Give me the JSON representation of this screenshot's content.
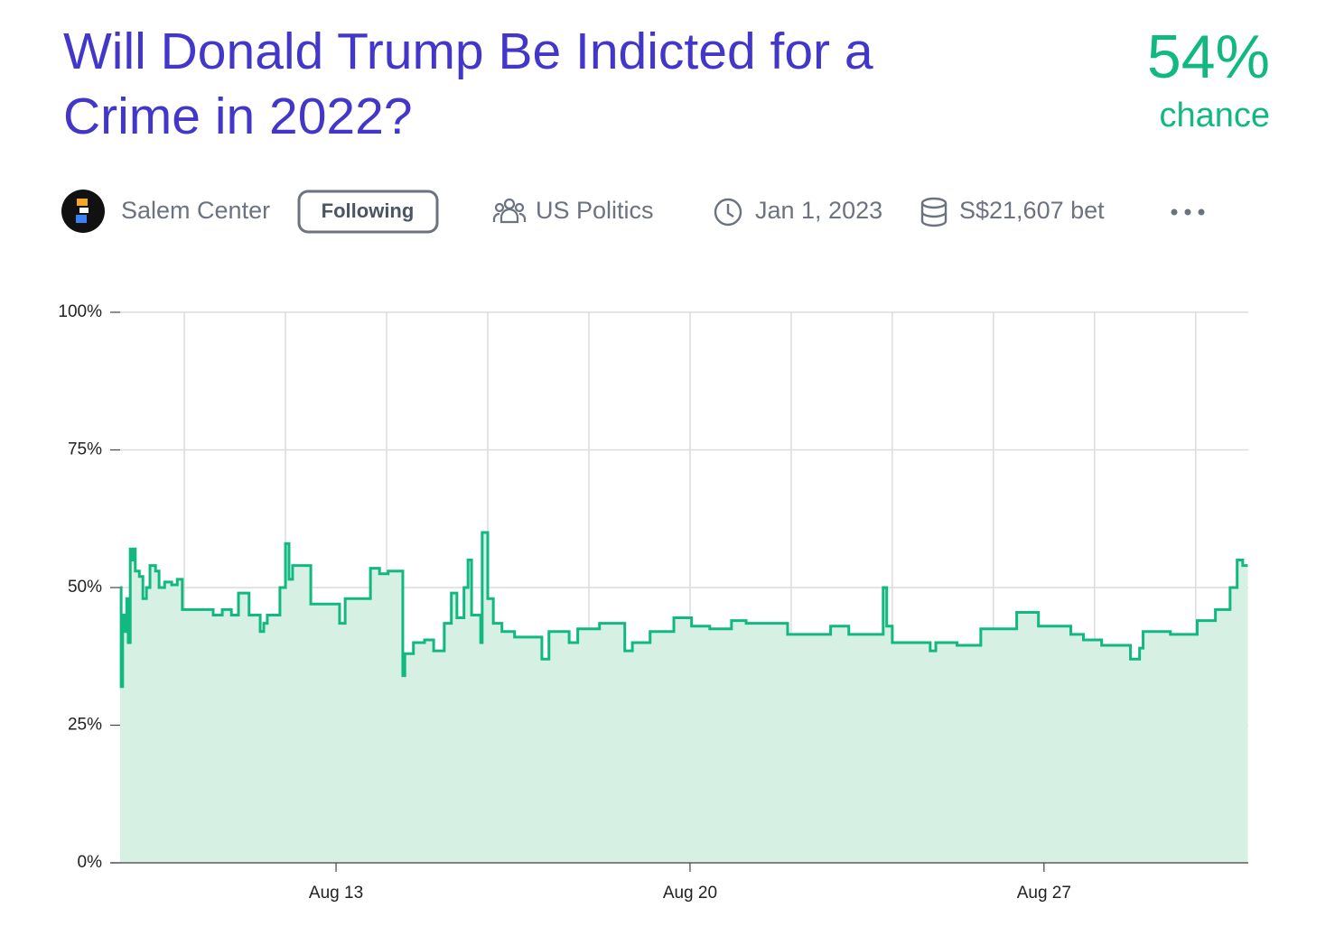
{
  "header": {
    "title_lines": [
      "Will Donald Trump Be Indicted for a",
      "Crime in 2022?"
    ],
    "probability": "54%",
    "probability_label": "chance",
    "author": "Salem Center",
    "follow_button": "Following",
    "category": "US Politics",
    "close_date": "Jan 1, 2023",
    "volume": "S$21,607 bet"
  },
  "chart_data": {
    "type": "line",
    "color": "#11b981",
    "fill": "#d6f0e4",
    "step": true,
    "grid": true,
    "x": [
      8.73,
      8.75,
      8.78,
      8.82,
      8.86,
      8.89,
      8.93,
      8.96,
      9.0,
      9.03,
      9.11,
      9.18,
      9.25,
      9.32,
      9.43,
      9.5,
      9.61,
      9.75,
      9.86,
      9.96,
      10.57,
      10.75,
      10.93,
      11.07,
      11.28,
      11.5,
      11.57,
      11.64,
      11.89,
      12.0,
      12.07,
      12.14,
      12.25,
      12.5,
      12.78,
      13.07,
      13.18,
      13.68,
      13.86,
      14.03,
      14.32,
      14.36,
      14.53,
      14.75,
      14.93,
      15.14,
      15.28,
      15.39,
      15.53,
      15.61,
      15.68,
      15.86,
      15.89,
      16.0,
      16.11,
      16.28,
      16.53,
      16.89,
      17.07,
      17.21,
      17.61,
      17.78,
      18.21,
      18.71,
      18.86,
      19.21,
      19.68,
      20.03,
      20.39,
      20.82,
      21.11,
      21.93,
      22.78,
      23.14,
      23.82,
      23.89,
      24.0,
      24.75,
      24.86,
      25.28,
      25.75,
      26.46,
      26.89,
      27.53,
      27.78,
      28.14,
      28.71,
      28.89,
      28.96,
      29.5,
      30.03,
      30.39,
      30.68,
      30.82,
      30.93,
      31.03
    ],
    "values": [
      50,
      32,
      45,
      42,
      48,
      40,
      57,
      55,
      57,
      53,
      52,
      48,
      50,
      54,
      53,
      50,
      51,
      50.5,
      51.5,
      46,
      45,
      46,
      45,
      49,
      45,
      42,
      43.5,
      45,
      50,
      58,
      51.5,
      54,
      54,
      47,
      47,
      43.5,
      48,
      53.5,
      52.5,
      53,
      34,
      38,
      40,
      40.5,
      38.5,
      43.5,
      49,
      44.5,
      50,
      55,
      45,
      40,
      60,
      48,
      43.5,
      42,
      41,
      41,
      37,
      42,
      40,
      42.5,
      43.5,
      38.5,
      40,
      42,
      44.5,
      43,
      42.5,
      44,
      43.5,
      41.5,
      43,
      41.5,
      50,
      43,
      40,
      38.5,
      40,
      39.5,
      42.5,
      45.5,
      43,
      41.5,
      40.5,
      39.5,
      37,
      39,
      42,
      41.5,
      44,
      46,
      50,
      55,
      54,
      54
    ],
    "xlim": [
      8.73,
      31.04
    ],
    "xticks": [
      {
        "value": 13,
        "label": "Aug 13"
      },
      {
        "value": 20,
        "label": "Aug 20"
      },
      {
        "value": 27,
        "label": "Aug 27"
      }
    ],
    "xgrid": [
      10,
      12,
      14,
      16,
      18,
      20,
      22,
      24,
      26,
      28,
      30
    ],
    "ylim": [
      0,
      100
    ],
    "yticks": [
      {
        "value": 0,
        "label": "0%"
      },
      {
        "value": 25,
        "label": "25%"
      },
      {
        "value": 50,
        "label": "50%"
      },
      {
        "value": 75,
        "label": "75%"
      },
      {
        "value": 100,
        "label": "100%"
      }
    ]
  }
}
